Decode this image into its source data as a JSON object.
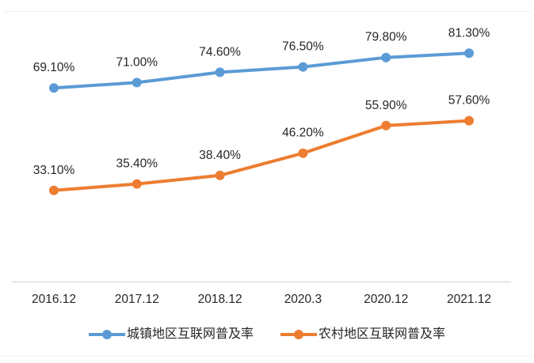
{
  "chart_data": {
    "type": "line",
    "title": "",
    "xlabel": "",
    "ylabel": "",
    "categories": [
      "2016.12",
      "2017.12",
      "2018.12",
      "2020.3",
      "2020.12",
      "2021.12"
    ],
    "series": [
      {
        "name": "城镇地区互联网普及率",
        "color": "#5B9BD5",
        "values": [
          69.1,
          71.0,
          74.6,
          76.5,
          79.8,
          81.3
        ],
        "labels": [
          "69.10%",
          "71.00%",
          "74.60%",
          "76.50%",
          "79.80%",
          "81.30%"
        ]
      },
      {
        "name": "农村地区互联网普及率",
        "color": "#ED7D31",
        "values": [
          33.1,
          35.4,
          38.4,
          46.2,
          55.9,
          57.6
        ],
        "labels": [
          "33.10%",
          "35.40%",
          "38.40%",
          "46.20%",
          "55.90%",
          "57.60%"
        ]
      }
    ],
    "ylim": [
      0,
      95
    ],
    "grid": false,
    "legend_position": "bottom",
    "marker": "circle",
    "label_color": "#262626",
    "tick_color": "#262626",
    "axis_line_color": "#D9D9D9",
    "border_line_color": "#EFEFEF"
  }
}
